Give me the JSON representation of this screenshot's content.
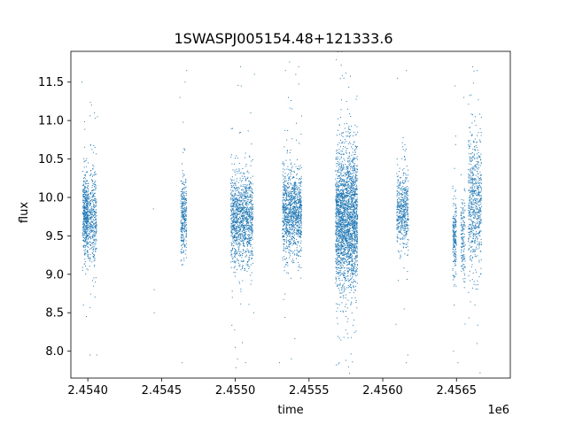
{
  "chart_data": {
    "type": "scatter",
    "title": "1SWASPJ005154.48+121333.6",
    "xlabel": "time",
    "ylabel": "flux",
    "x_offset_label": "1e6",
    "xlim": [
      2453835,
      2456815
    ],
    "ylim": [
      7.65,
      11.9
    ],
    "x_ticks": [
      2453950,
      2454450,
      2454950,
      2455450,
      2455950,
      2456450
    ],
    "x_tick_labels": [
      "2.4540",
      "2.4545",
      "2.4550",
      "2.4555",
      "2.4560",
      "2.4565"
    ],
    "y_ticks": [
      8.0,
      8.5,
      9.0,
      9.5,
      10.0,
      10.5,
      11.0,
      11.5
    ],
    "y_tick_labels": [
      "8.0",
      "8.5",
      "9.0",
      "9.5",
      "10.0",
      "10.5",
      "11.0",
      "11.5"
    ],
    "marker_color": "#1f77b4",
    "grid": false,
    "legend": "none",
    "series": [
      {
        "clusters": [
          {
            "x_range": [
              2453915,
              2453955
            ],
            "center": 9.78,
            "spread": 0.25,
            "count": 500
          },
          {
            "x_range": [
              2453960,
              2454010
            ],
            "center": 9.72,
            "spread": 0.3,
            "count": 350
          },
          {
            "x_range": [
              2454580,
              2454620
            ],
            "center": 9.75,
            "spread": 0.28,
            "count": 300
          },
          {
            "x_range": [
              2454920,
              2455070
            ],
            "center": 9.72,
            "spread": 0.3,
            "count": 1200
          },
          {
            "x_range": [
              2455270,
              2455400
            ],
            "center": 9.8,
            "spread": 0.28,
            "count": 1100
          },
          {
            "x_range": [
              2455630,
              2455780
            ],
            "center": 9.72,
            "spread": 0.45,
            "count": 2400
          },
          {
            "x_range": [
              2456045,
              2456125
            ],
            "center": 9.85,
            "spread": 0.25,
            "count": 500
          },
          {
            "x_range": [
              2456425,
              2456450
            ],
            "center": 9.5,
            "spread": 0.25,
            "count": 200
          },
          {
            "x_range": [
              2456480,
              2456510
            ],
            "center": 9.45,
            "spread": 0.3,
            "count": 150
          },
          {
            "x_range": [
              2456530,
              2456620
            ],
            "center": 9.95,
            "spread": 0.45,
            "count": 650
          }
        ],
        "outliers": [
          [
            2453910,
            11.5
          ],
          [
            2453975,
            11.2
          ],
          [
            2453995,
            11.1
          ],
          [
            2454015,
            11.05
          ],
          [
            2453920,
            8.6
          ],
          [
            2453940,
            8.45
          ],
          [
            2454010,
            7.95
          ],
          [
            2453965,
            7.95
          ],
          [
            2454400,
            8.8
          ],
          [
            2454400,
            8.5
          ],
          [
            2454395,
            9.85
          ],
          [
            2454620,
            11.65
          ],
          [
            2454610,
            11.5
          ],
          [
            2454575,
            11.3
          ],
          [
            2454590,
            7.85
          ],
          [
            2454930,
            8.7
          ],
          [
            2454950,
            8.05
          ],
          [
            2454965,
            7.9
          ],
          [
            2455020,
            7.85
          ],
          [
            2455075,
            8.5
          ],
          [
            2454985,
            11.7
          ],
          [
            2455080,
            11.6
          ],
          [
            2454990,
            11.45
          ],
          [
            2455290,
            11.65
          ],
          [
            2455360,
            11.6
          ],
          [
            2455380,
            11.7
          ],
          [
            2455310,
            11.3
          ],
          [
            2455250,
            7.85
          ],
          [
            2455330,
            7.9
          ],
          [
            2455395,
            8.95
          ],
          [
            2455380,
            9.1
          ],
          [
            2455655,
            7.85
          ],
          [
            2455700,
            7.88
          ],
          [
            2455745,
            7.86
          ],
          [
            2456050,
            11.55
          ],
          [
            2456110,
            11.65
          ],
          [
            2456120,
            7.95
          ],
          [
            2456110,
            7.85
          ],
          [
            2456040,
            8.35
          ],
          [
            2456440,
            11.45
          ],
          [
            2456430,
            8.0
          ],
          [
            2456460,
            7.85
          ],
          [
            2456435,
            8.6
          ],
          [
            2456500,
            11.3
          ],
          [
            2456560,
            11.7
          ],
          [
            2456590,
            11.65
          ],
          [
            2456575,
            8.6
          ],
          [
            2456590,
            8.1
          ]
        ]
      }
    ]
  }
}
